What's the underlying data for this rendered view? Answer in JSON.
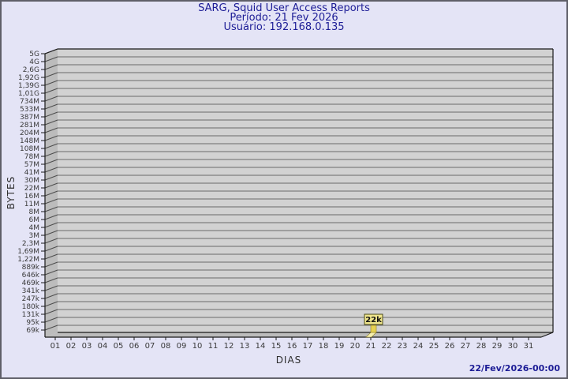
{
  "window": {
    "background": "#e4e4f6",
    "border_color": "#5f5f68"
  },
  "title": {
    "line1": "SARG, Squid User Access Reports",
    "line2": "Período: 21 Fev 2026",
    "line3": "Usuário: 192.168.0.135",
    "color": "#1c1c96"
  },
  "axes": {
    "x_title": "DIAS",
    "y_title": "BYTES"
  },
  "footer": {
    "timestamp": "22/Fev/2026-00:00",
    "color": "#1c1c96"
  },
  "chart_data": {
    "type": "bar",
    "title": "SARG, Squid User Access Reports",
    "subtitle": "Período: 21 Fev 2026",
    "user_label": "Usuário: 192.168.0.135",
    "xlabel": "DIAS",
    "ylabel": "BYTES",
    "y_scale": "log",
    "ylim": [
      "69k",
      "5G"
    ],
    "grid": "horizontal",
    "legend": "none",
    "categories": [
      "01",
      "02",
      "03",
      "04",
      "05",
      "06",
      "07",
      "08",
      "09",
      "10",
      "11",
      "12",
      "13",
      "14",
      "15",
      "16",
      "17",
      "18",
      "19",
      "20",
      "21",
      "22",
      "23",
      "24",
      "25",
      "26",
      "27",
      "28",
      "29",
      "30",
      "31"
    ],
    "values": [
      0,
      0,
      0,
      0,
      0,
      0,
      0,
      0,
      0,
      0,
      0,
      0,
      0,
      0,
      0,
      0,
      0,
      0,
      0,
      0,
      22000,
      0,
      0,
      0,
      0,
      0,
      0,
      0,
      0,
      0,
      0
    ],
    "bars": [
      {
        "category": "21",
        "value": 22000,
        "label": "22k"
      }
    ],
    "y_tick_labels": [
      "5G",
      "4G",
      "2,6G",
      "1,92G",
      "1,39G",
      "1,01G",
      "734M",
      "533M",
      "387M",
      "281M",
      "204M",
      "148M",
      "108M",
      "78M",
      "57M",
      "41M",
      "30M",
      "22M",
      "16M",
      "11M",
      "8M",
      "6M",
      "4M",
      "3M",
      "2,3M",
      "1,69M",
      "1,22M",
      "889k",
      "646k",
      "469k",
      "341k",
      "247k",
      "180k",
      "131k",
      "95k",
      "69k"
    ],
    "colors": {
      "plot_bg": "#d2d2d2",
      "wall": "#bcbcbc",
      "grid": "#6a6a6a",
      "wall_grid": "#4d4d4d",
      "frame": "#1a1a1a",
      "bar": "#e8d252",
      "bar_foot": "#f6efae",
      "bar_edge": "#8a7a22",
      "value_box_bg": "#f0e68c",
      "value_box_border": "#4a4a1a",
      "value_text": "#111111",
      "tick_text": "#3a3a3a"
    }
  }
}
